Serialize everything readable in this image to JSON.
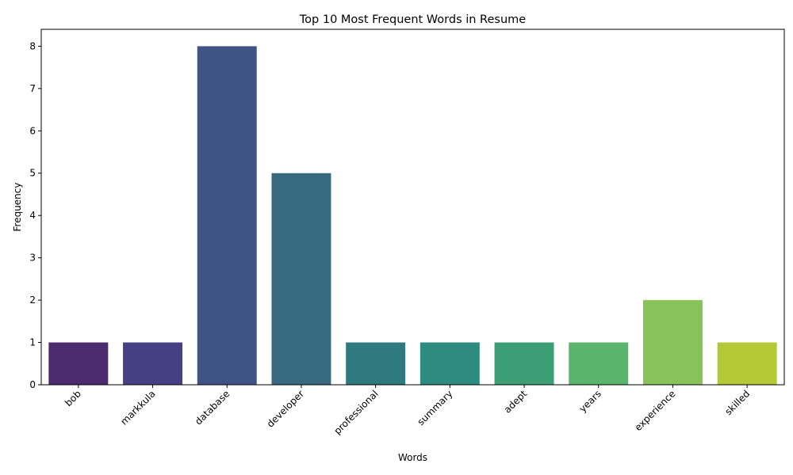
{
  "chart_data": {
    "type": "bar",
    "title": "Top 10 Most Frequent Words in Resume",
    "xlabel": "Words",
    "ylabel": "Frequency",
    "categories": [
      "bob",
      "markkula",
      "database",
      "developer",
      "professional",
      "summary",
      "adept",
      "years",
      "experience",
      "skilled"
    ],
    "values": [
      1,
      1,
      8,
      5,
      1,
      1,
      1,
      1,
      2,
      1
    ],
    "colors": [
      "#4b2a6e",
      "#453f83",
      "#3f5484",
      "#37697f",
      "#2f7a7f",
      "#2d8c7f",
      "#3b9e75",
      "#5bb46b",
      "#88c35a",
      "#b3c935"
    ],
    "ylim": [
      0,
      8.4
    ],
    "yticks": [
      0,
      1,
      2,
      3,
      4,
      5,
      6,
      7,
      8
    ],
    "grid": false,
    "legend": "none"
  }
}
